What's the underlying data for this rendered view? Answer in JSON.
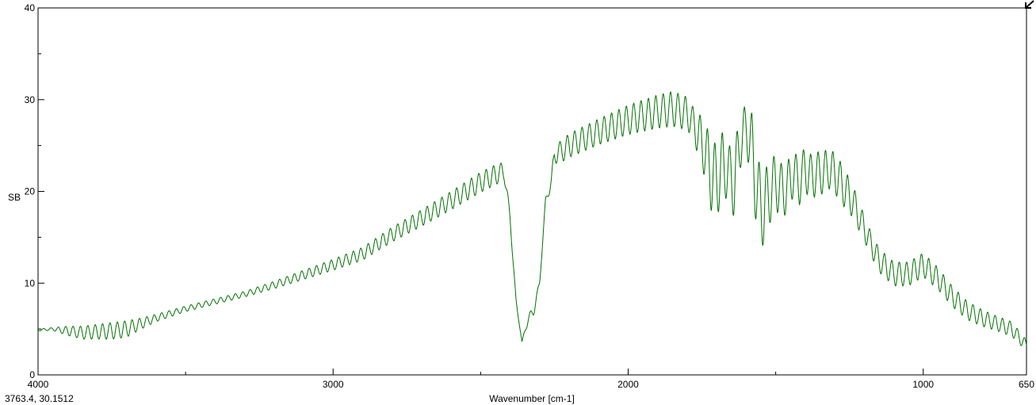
{
  "chart_data": {
    "type": "line",
    "xlabel": "Wavenumber [cm-1]",
    "ylabel": "SB",
    "xlim": [
      4000,
      650
    ],
    "ylim": [
      0,
      40
    ],
    "x_reversed": true,
    "x_ticks": [
      4000,
      3000,
      2000,
      1000,
      650
    ],
    "x_tick_labels": [
      "4000",
      "3000",
      "2000",
      "1000",
      "650"
    ],
    "y_ticks": [
      0,
      10,
      20,
      30,
      40
    ],
    "y_tick_labels": [
      "0",
      "10",
      "20",
      "30",
      "40"
    ],
    "grid": false,
    "line_color": "#007000",
    "series": [
      {
        "x": [
          4000,
          3950,
          3900,
          3850,
          3800,
          3750,
          3700,
          3650,
          3600,
          3500,
          3400,
          3300,
          3200,
          3100,
          3000,
          2900,
          2800,
          2700,
          2600,
          2500,
          2450,
          2420,
          2400,
          2380,
          2360,
          2340,
          2320,
          2300,
          2280,
          2260,
          2250,
          2220,
          2200,
          2100,
          2000,
          1900,
          1850,
          1800,
          1780,
          1760,
          1740,
          1720,
          1700,
          1680,
          1660,
          1640,
          1620,
          1600,
          1580,
          1560,
          1540,
          1520,
          1500,
          1480,
          1460,
          1440,
          1420,
          1400,
          1380,
          1360,
          1340,
          1320,
          1300,
          1280,
          1260,
          1240,
          1220,
          1200,
          1180,
          1150,
          1100,
          1050,
          1000,
          950,
          900,
          850,
          800,
          750,
          700,
          650
        ],
        "y": [
          4.9,
          5.0,
          4.8,
          4.6,
          4.7,
          4.8,
          5.0,
          5.6,
          6.2,
          7.2,
          8.0,
          8.8,
          9.8,
          10.9,
          12.0,
          13.2,
          15.3,
          17.1,
          19.0,
          21.0,
          21.8,
          22.2,
          17.0,
          8.0,
          3.6,
          6.0,
          7.0,
          10.0,
          19.0,
          21.0,
          24.0,
          24.5,
          25.0,
          26.5,
          27.8,
          28.7,
          29.0,
          28.5,
          27.5,
          26.0,
          24.5,
          22.0,
          21.0,
          23.0,
          22.0,
          21.0,
          25.5,
          27.0,
          24.5,
          19.0,
          18.0,
          20.0,
          21.0,
          20.0,
          20.5,
          22.0,
          21.0,
          22.5,
          21.5,
          22.0,
          22.0,
          22.5,
          22.0,
          21.0,
          20.0,
          19.0,
          17.5,
          16.0,
          14.5,
          12.5,
          11.0,
          11.0,
          12.0,
          10.5,
          8.5,
          7.0,
          6.2,
          5.6,
          5.0,
          3.2
        ],
        "fringe_amplitude": [
          0.1,
          0.15,
          0.5,
          0.7,
          0.8,
          0.9,
          0.9,
          0.6,
          0.4,
          0.3,
          0.3,
          0.3,
          0.4,
          0.5,
          0.6,
          0.7,
          0.8,
          0.9,
          1.0,
          1.1,
          1.1,
          1.0,
          0.5,
          0.2,
          0.0,
          0.5,
          0.5,
          0.3,
          0.3,
          0.8,
          1.0,
          1.2,
          1.3,
          1.4,
          1.6,
          1.8,
          1.9,
          1.8,
          1.7,
          2.5,
          3.0,
          4.0,
          4.0,
          3.5,
          3.0,
          4.0,
          3.0,
          2.5,
          4.0,
          4.5,
          4.0,
          3.5,
          3.0,
          3.0,
          2.8,
          2.5,
          2.5,
          2.5,
          2.5,
          2.3,
          2.3,
          2.2,
          2.2,
          2.2,
          2.0,
          1.8,
          1.6,
          1.4,
          1.3,
          1.3,
          1.3,
          1.3,
          1.3,
          1.2,
          1.1,
          1.0,
          0.9,
          0.8,
          0.8,
          0.6
        ],
        "fringe_period": 25
      }
    ]
  },
  "status": {
    "cursor_readout": "3763.4,  30.1512"
  },
  "icons": {
    "corner": "arrow-down-left-icon"
  }
}
